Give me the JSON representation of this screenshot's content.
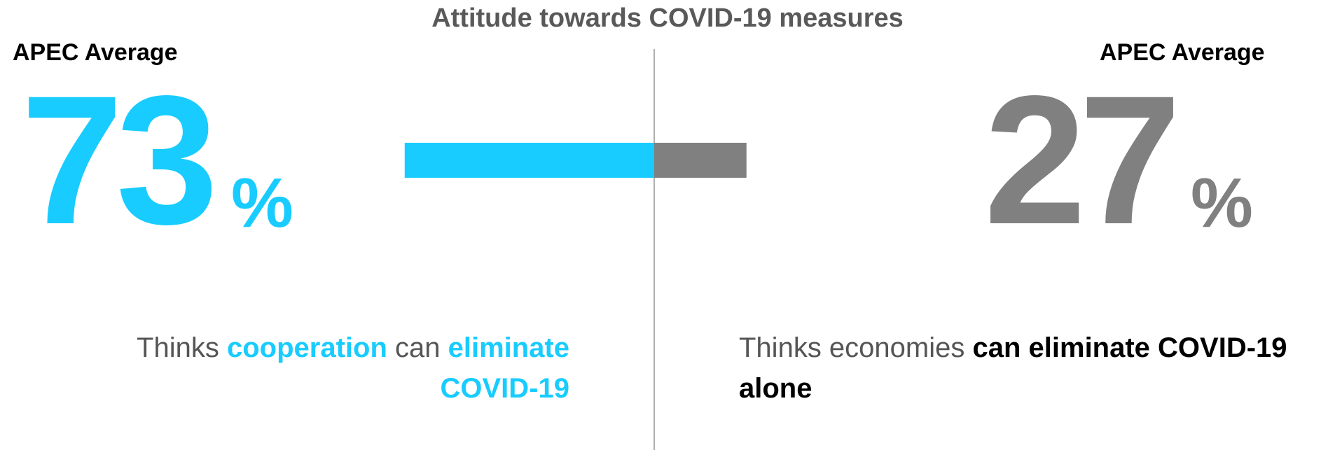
{
  "chart_data": {
    "type": "bar",
    "title": "Attitude towards COVID-19 measures",
    "series": [
      {
        "name": "Thinks cooperation can eliminate COVID-19",
        "value": 73,
        "color": "#18CCFF"
      },
      {
        "name": "Thinks economies can eliminate COVID-19 alone",
        "value": 27,
        "color": "#808080"
      }
    ],
    "ylim": [
      0,
      100
    ],
    "unit": "%"
  },
  "left": {
    "label": "APEC Average",
    "value": "73",
    "unit": "%",
    "caption": {
      "p1": "Thinks ",
      "p2": "cooperation",
      "p3": " can ",
      "p4": "eliminate COVID-19"
    }
  },
  "right": {
    "label": "APEC Average",
    "value": "27",
    "unit": "%",
    "caption": {
      "p1": "Thinks economies ",
      "p2": "can eliminate COVID-19 alone"
    }
  }
}
